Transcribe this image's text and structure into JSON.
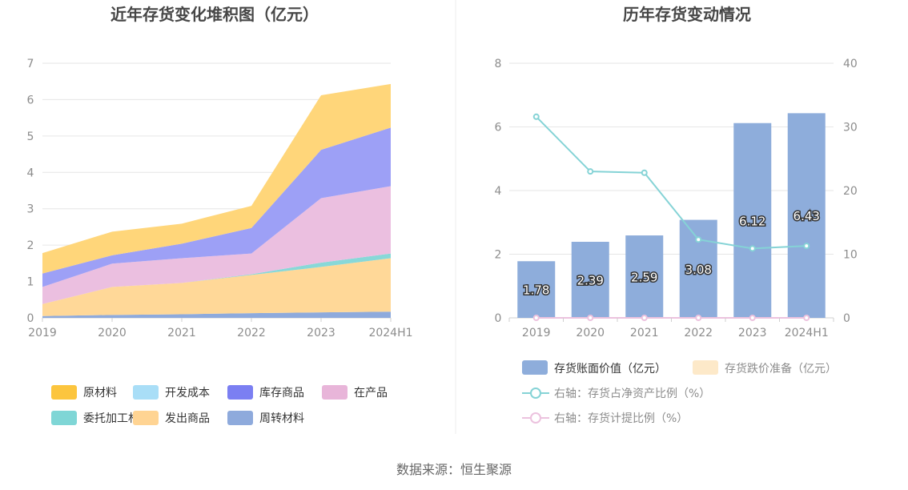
{
  "source_text": "数据来源：恒生聚源",
  "chart_data": [
    {
      "type": "area",
      "stacked": true,
      "title": "近年存货变化堆积图（亿元）",
      "categories": [
        "2019",
        "2020",
        "2021",
        "2022",
        "2023",
        "2024H1"
      ],
      "ylim": [
        0,
        7
      ],
      "yticks": [
        "0",
        "1",
        "2",
        "3",
        "4",
        "5",
        "6",
        "7"
      ],
      "series": [
        {
          "name": "周转材料",
          "color": "#8eaadc",
          "values": [
            0.05,
            0.08,
            0.1,
            0.13,
            0.15,
            0.17
          ]
        },
        {
          "name": "发出商品",
          "color": "#ffd898",
          "values": [
            0.33,
            0.77,
            0.86,
            1.05,
            1.25,
            1.47
          ]
        },
        {
          "name": "委托加工材料",
          "color": "#88d8d8",
          "values": [
            0.0,
            0.0,
            0.0,
            0.02,
            0.12,
            0.13
          ]
        },
        {
          "name": "在产品",
          "color": "#ebbfe0",
          "values": [
            0.47,
            0.64,
            0.68,
            0.57,
            1.77,
            1.85
          ]
        },
        {
          "name": "开发成本",
          "color": "#aee2fa",
          "values": [
            0.0,
            0.0,
            0.0,
            0.0,
            0.0,
            0.0
          ]
        },
        {
          "name": "库存商品",
          "color": "#9da0f6",
          "values": [
            0.37,
            0.23,
            0.4,
            0.7,
            1.33,
            1.61
          ]
        },
        {
          "name": "原材料",
          "color": "#ffd67a",
          "values": [
            0.56,
            0.65,
            0.55,
            0.61,
            1.5,
            1.2
          ]
        }
      ],
      "legend": [
        {
          "name": "原材料",
          "color": "#fcc53e"
        },
        {
          "name": "开发成本",
          "color": "#a9def7"
        },
        {
          "name": "库存商品",
          "color": "#7b7ff2"
        },
        {
          "name": "在产品",
          "color": "#e8b5d9"
        },
        {
          "name": "委托加工材料",
          "color": "#7fd6d6"
        },
        {
          "name": "发出商品",
          "color": "#ffd493"
        },
        {
          "name": "周转材料",
          "color": "#8eaadc"
        }
      ]
    },
    {
      "type": "bar+line",
      "title": "历年存货变动情况",
      "categories": [
        "2019",
        "2020",
        "2021",
        "2022",
        "2023",
        "2024H1"
      ],
      "ylim_left": [
        0,
        8
      ],
      "yticks_left": [
        "0",
        "2",
        "4",
        "6",
        "8"
      ],
      "ylim_right": [
        0,
        40
      ],
      "yticks_right": [
        "0",
        "10",
        "20",
        "30",
        "40"
      ],
      "bars": [
        {
          "name": "存货账面价值（亿元）",
          "color": "#8eaddb",
          "values": [
            1.78,
            2.39,
            2.59,
            3.08,
            6.12,
            6.43
          ],
          "labels": [
            "1.78",
            "2.39",
            "2.59",
            "3.08",
            "6.12",
            "6.43"
          ]
        },
        {
          "name": "存货跌价准备（亿元）",
          "color": "#fde9c9",
          "values": [
            0,
            0,
            0,
            0,
            0,
            0
          ]
        }
      ],
      "lines": [
        {
          "name": "右轴：存货占净资产比例（%）",
          "color": "#85d3d6",
          "values": [
            31.6,
            23.0,
            22.8,
            12.3,
            10.9,
            11.3
          ]
        },
        {
          "name": "右轴：存货计提比例（%）",
          "color": "#ecc2de",
          "values": [
            0,
            0,
            0,
            0,
            0,
            0
          ]
        }
      ]
    }
  ]
}
